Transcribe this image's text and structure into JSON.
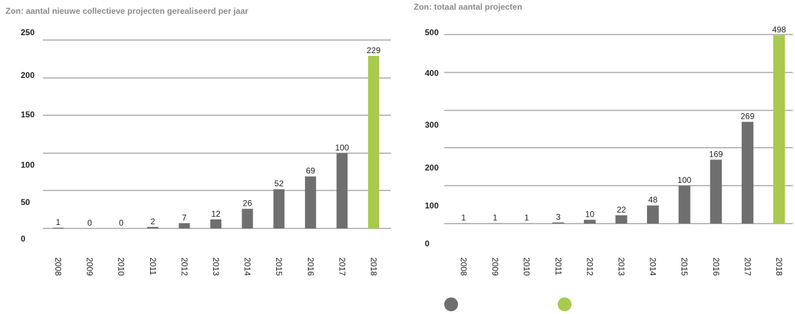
{
  "colors": {
    "grey": "#6f6f6f",
    "green": "#a9c94f"
  },
  "charts": [
    {
      "title": "Zon: aantal nieuwe collectieve projecten gerealiseerd per jaar"
    },
    {
      "title": "Zon: totaal aantal projecten"
    }
  ],
  "chart_data": [
    {
      "type": "bar",
      "title": "Zon: aantal nieuwe collectieve projecten gerealiseerd per jaar",
      "categories": [
        "2008",
        "2009",
        "2010",
        "2011",
        "2012",
        "2013",
        "2014",
        "2015",
        "2016",
        "2017",
        "2018"
      ],
      "values": [
        1,
        0,
        0,
        2,
        7,
        12,
        26,
        52,
        69,
        100,
        229
      ],
      "bar_colors": [
        "grey",
        "grey",
        "grey",
        "grey",
        "grey",
        "grey",
        "grey",
        "grey",
        "grey",
        "grey",
        "green"
      ],
      "yticks": [
        "0",
        "50",
        "100",
        "150",
        "200",
        "250"
      ],
      "ylim": [
        0,
        250
      ],
      "grid": true
    },
    {
      "type": "bar",
      "title": "Zon: totaal aantal projecten",
      "categories": [
        "2008",
        "2009",
        "2010",
        "2011",
        "2012",
        "2013",
        "2014",
        "2015",
        "2016",
        "2017",
        "2018"
      ],
      "values": [
        1,
        1,
        1,
        3,
        10,
        22,
        48,
        100,
        169,
        269,
        498
      ],
      "bar_colors": [
        "grey",
        "grey",
        "grey",
        "grey",
        "grey",
        "grey",
        "grey",
        "grey",
        "grey",
        "grey",
        "green"
      ],
      "yticks": [
        "0",
        "100",
        "200",
        "300",
        "400",
        "500"
      ],
      "ylim": [
        0,
        500
      ],
      "grid": true
    }
  ],
  "legend": [
    {
      "color": "grey"
    },
    {
      "color": "green"
    }
  ]
}
